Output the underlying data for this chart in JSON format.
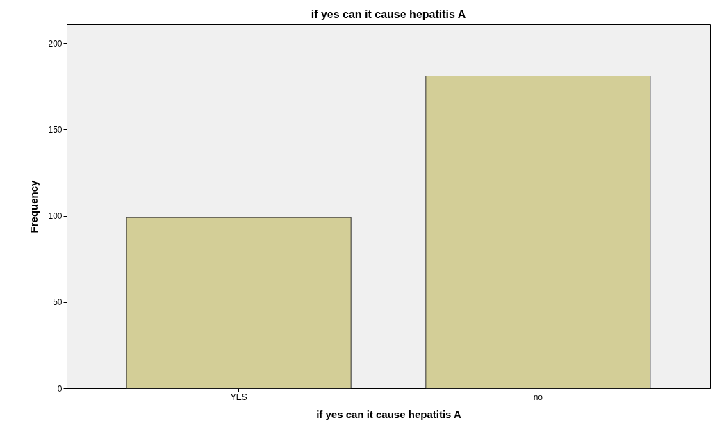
{
  "chart_data": {
    "type": "bar",
    "title": "if yes can it cause hepatitis A",
    "xlabel": "if yes can it cause hepatitis A",
    "ylabel": "Frequency",
    "categories": [
      "YES",
      "no"
    ],
    "values": [
      99,
      181
    ],
    "color": "#d3ce97",
    "ylim": [
      0,
      211
    ],
    "yticks": [
      0,
      50,
      100,
      150,
      200
    ],
    "grid": false
  }
}
